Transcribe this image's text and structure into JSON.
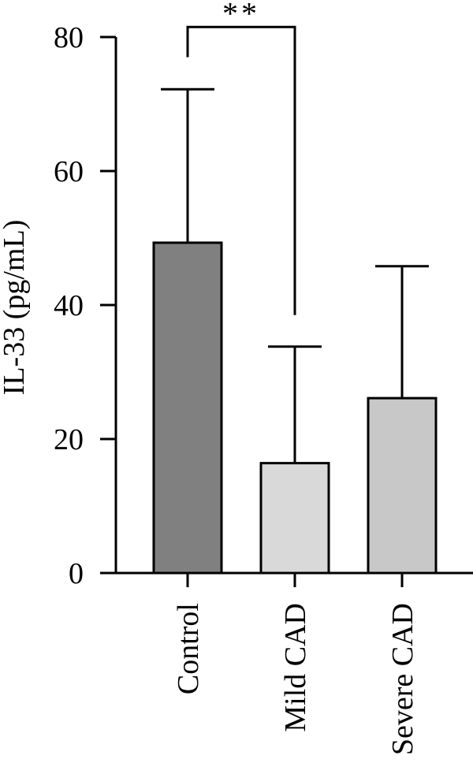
{
  "chart_data": {
    "type": "bar",
    "title": "",
    "xlabel": "",
    "ylabel": "IL-33 (pg/mL)",
    "ylim": [
      0,
      80
    ],
    "yticks": [
      "0",
      "20",
      "40",
      "60",
      "80"
    ],
    "categories": [
      "Control",
      "Mild CAD",
      "Severe CAD"
    ],
    "values": [
      49.3,
      16.4,
      26.1
    ],
    "error_upper": [
      72.2,
      33.8,
      45.8
    ],
    "bar_colors": [
      "#808080",
      "#d9d9d9",
      "#c8c8c8"
    ],
    "significance": {
      "from": "Control",
      "to": "Mild CAD",
      "label": "**",
      "left_bottom": 77,
      "right_bottom": 38.5,
      "top": 81.5
    },
    "grid": false,
    "legend": "none"
  }
}
